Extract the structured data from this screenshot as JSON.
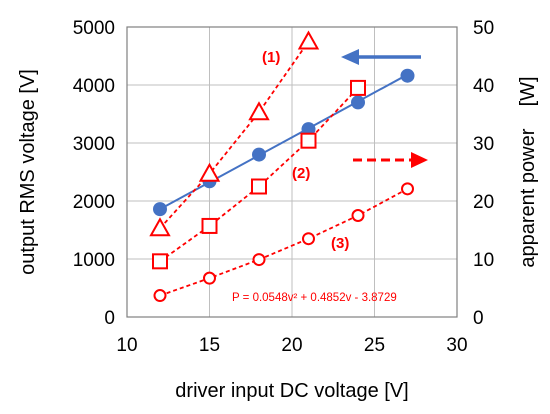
{
  "chart_data": {
    "type": "scatter",
    "xlabel": "driver input DC voltage [V]",
    "ylabel_left": "output RMS voltage [V]",
    "ylabel_right": "apparent power    [W]",
    "xlim": [
      10,
      30
    ],
    "ylim_left": [
      0,
      5000
    ],
    "ylim_right": [
      0,
      50
    ],
    "x_ticks": [
      "10",
      "15",
      "20",
      "25",
      "30"
    ],
    "y_ticks_left": [
      "0",
      "1000",
      "2000",
      "3000",
      "4000",
      "5000"
    ],
    "y_ticks_right": [
      "0",
      "10",
      "20",
      "30",
      "40",
      "50"
    ],
    "colors": {
      "voltage": "#4472C4",
      "power": "#FF0000"
    },
    "series": [
      {
        "axis": "left",
        "marker": "filled-circle",
        "line": "solid",
        "x": [
          12,
          15,
          18,
          21,
          24,
          27
        ],
        "values": [
          1860,
          2340,
          2800,
          3240,
          3700,
          4160
        ],
        "fit_line": {
          "x": [
            12,
            27
          ],
          "values": [
            1860,
            4180
          ]
        }
      },
      {
        "label": "(1)",
        "axis": "right",
        "marker": "open-triangle",
        "line": "dashed",
        "x": [
          12,
          15,
          18,
          21
        ],
        "values": [
          15.3,
          24.7,
          35.3,
          47.5
        ]
      },
      {
        "label": "(2)",
        "axis": "right",
        "marker": "open-square",
        "line": "dashed",
        "x": [
          12,
          15,
          18,
          21,
          24
        ],
        "values": [
          9.6,
          15.7,
          22.5,
          30.4,
          39.5
        ]
      },
      {
        "label": "(3)",
        "axis": "right",
        "marker": "open-circle",
        "line": "dashed",
        "x": [
          12,
          15,
          18,
          21,
          24,
          27
        ],
        "values": [
          3.7,
          6.7,
          9.9,
          13.5,
          17.5,
          22.1
        ]
      }
    ],
    "annotations": {
      "formula": "P = 0.0548v² + 0.4852v - 3.8729",
      "label_1": "(1)",
      "label_2": "(2)",
      "label_3": "(3)"
    }
  }
}
